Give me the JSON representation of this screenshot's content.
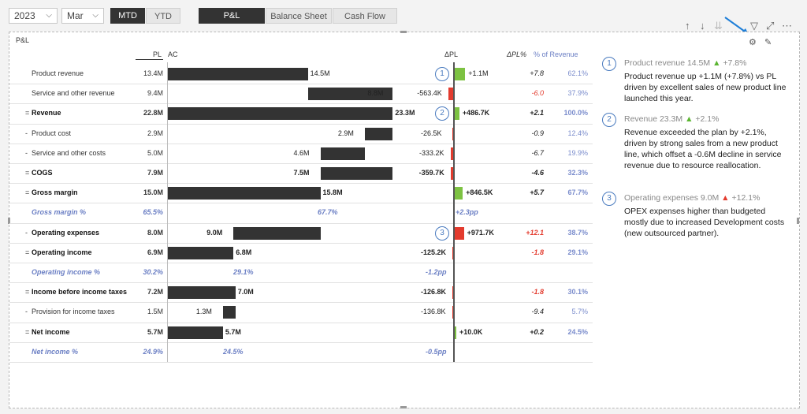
{
  "filters": {
    "year": "2023",
    "month": "Mar",
    "mtd": "MTD",
    "ytd": "YTD"
  },
  "tabs": [
    "P&L",
    "Balance Sheet",
    "Cash Flow"
  ],
  "panel_title": "P&L",
  "headers": {
    "pl": "PL",
    "ac": "AC",
    "dpl": "ΔPL",
    "dplpct": "ΔPL%",
    "rev": "% of Revenue"
  },
  "colors": {
    "positive": "#7dc242",
    "negative": "#e33b2e",
    "bar": "#333333",
    "percent": "#6b7fc4"
  },
  "icons": [
    "arrow-up-icon",
    "arrow-down-icon",
    "drill-icon",
    "filter-icon",
    "focus-icon",
    "more-icon",
    "comment-icon",
    "pen-icon"
  ],
  "rows": [
    {
      "prefix": "",
      "label": "Product revenue",
      "pl": "13.4M",
      "ac": "14.5M",
      "dpl": "+1.1M",
      "dplpct": "+7.8",
      "rev": "62.1%",
      "style": "normal",
      "base": 0,
      "val": 14.5,
      "dval": 1.1,
      "badge": "1"
    },
    {
      "prefix": "",
      "label": "Service and other revenue",
      "pl": "9.4M",
      "ac": "8.8M",
      "dpl": "-563.4K",
      "dplpct": "-6.0",
      "rev": "37.9%",
      "style": "normal",
      "base": 14.5,
      "val": 8.8,
      "dval": -0.5634
    },
    {
      "prefix": "=",
      "label": "Revenue",
      "pl": "22.8M",
      "ac": "23.3M",
      "dpl": "+486.7K",
      "dplpct": "+2.1",
      "rev": "100.0%",
      "style": "bold",
      "base": 0,
      "val": 23.3,
      "dval": 0.4867,
      "badge": "2"
    },
    {
      "prefix": "-",
      "label": "Product cost",
      "pl": "2.9M",
      "ac": "2.9M",
      "dpl": "-26.5K",
      "dplpct": "-0.9",
      "rev": "12.4%",
      "style": "normal",
      "base": 23.3,
      "val": -2.9,
      "dval": -0.0265
    },
    {
      "prefix": "-",
      "label": "Service and other costs",
      "pl": "5.0M",
      "ac": "4.6M",
      "dpl": "-333.2K",
      "dplpct": "-6.7",
      "rev": "19.9%",
      "style": "normal",
      "base": 20.4,
      "val": -4.6,
      "dval": -0.3332
    },
    {
      "prefix": "=",
      "label": "COGS",
      "pl": "7.9M",
      "ac": "7.5M",
      "dpl": "-359.7K",
      "dplpct": "-4.6",
      "rev": "32.3%",
      "style": "bold",
      "base": 23.3,
      "val": -7.5,
      "dval": -0.3597
    },
    {
      "prefix": "=",
      "label": "Gross margin",
      "pl": "15.0M",
      "ac": "15.8M",
      "dpl": "+846.5K",
      "dplpct": "+5.7",
      "rev": "67.7%",
      "style": "bold",
      "base": 0,
      "val": 15.8,
      "dval": 0.8465
    },
    {
      "prefix": "",
      "label": "Gross margin %",
      "pl": "65.5%",
      "ac": "67.7%",
      "dpl": "+2.3pp",
      "dplpct": "",
      "rev": "",
      "style": "pct"
    },
    {
      "prefix": "-",
      "label": "Operating expenses",
      "pl": "8.0M",
      "ac": "9.0M",
      "dpl": "+971.7K",
      "dplpct": "+12.1",
      "rev": "38.7%",
      "style": "bold",
      "base": 15.8,
      "val": -9.0,
      "dval": 0.9717,
      "badge": "3",
      "dneg": true
    },
    {
      "prefix": "=",
      "label": "Operating income",
      "pl": "6.9M",
      "ac": "6.8M",
      "dpl": "-125.2K",
      "dplpct": "-1.8",
      "rev": "29.1%",
      "style": "bold",
      "base": 0,
      "val": 6.8,
      "dval": -0.1252
    },
    {
      "prefix": "",
      "label": "Operating income %",
      "pl": "30.2%",
      "ac": "29.1%",
      "dpl": "-1.2pp",
      "dplpct": "",
      "rev": "",
      "style": "pct"
    },
    {
      "prefix": "=",
      "label": "Income before income taxes",
      "pl": "7.2M",
      "ac": "7.0M",
      "dpl": "-126.8K",
      "dplpct": "-1.8",
      "rev": "30.1%",
      "style": "bold",
      "base": 0,
      "val": 7.0,
      "dval": -0.1268
    },
    {
      "prefix": "-",
      "label": "Provision for income taxes",
      "pl": "1.5M",
      "ac": "1.3M",
      "dpl": "-136.8K",
      "dplpct": "-9.4",
      "rev": "5.7%",
      "style": "normal",
      "base": 7.0,
      "val": -1.3,
      "dval": -0.1368
    },
    {
      "prefix": "=",
      "label": "Net income",
      "pl": "5.7M",
      "ac": "5.7M",
      "dpl": "+10.0K",
      "dplpct": "+0.2",
      "rev": "24.5%",
      "style": "bold",
      "base": 0,
      "val": 5.7,
      "dval": 0.01
    },
    {
      "prefix": "",
      "label": "Net income %",
      "pl": "24.9%",
      "ac": "24.5%",
      "dpl": "-0.5pp",
      "dplpct": "",
      "rev": "",
      "style": "pct"
    }
  ],
  "notes": [
    {
      "n": "1",
      "title": "Product revenue 14.5M",
      "arrow": "▲",
      "delta": "+7.8%",
      "dir": "up",
      "body": "Product revenue up +1.1M (+7.8%) vs PL driven by excellent sales of new product line launched this year."
    },
    {
      "n": "2",
      "title": "Revenue 23.3M",
      "arrow": "▲",
      "delta": "+2.1%",
      "dir": "up",
      "body": "Revenue exceeded the plan by +2.1%, driven by strong sales from a new product line, which offset a -0.6M decline in service revenue due to resource reallocation."
    },
    {
      "n": "3",
      "title": "Operating expenses 9.0M",
      "arrow": "▲",
      "delta": "+12.1%",
      "dir": "upred",
      "body": "OPEX expenses higher than budgeted mostly due to increased Development costs (new outsourced partner)."
    }
  ]
}
